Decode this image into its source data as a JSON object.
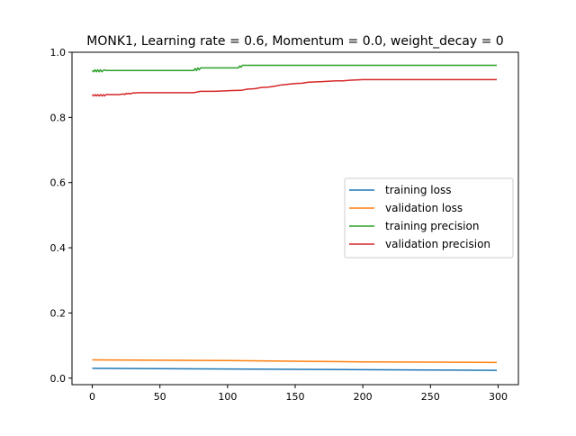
{
  "chart_data": {
    "type": "line",
    "title": "MONK1, Learning rate = 0.6, Momentum = 0.0, weight_decay = 0",
    "xlabel": "",
    "ylabel": "",
    "xlim": [
      -15,
      315
    ],
    "ylim": [
      -0.02,
      1.0
    ],
    "xticks": [
      0,
      50,
      100,
      150,
      200,
      250,
      300
    ],
    "yticks": [
      0.0,
      0.2,
      0.4,
      0.6,
      0.8,
      1.0
    ],
    "ytick_labels": [
      "0.0",
      "0.2",
      "0.4",
      "0.6",
      "0.8",
      "1.0"
    ],
    "grid": false,
    "legend_position": "center-right",
    "series": [
      {
        "name": "training loss",
        "color": "#1f77b4",
        "x": [
          0,
          50,
          100,
          150,
          200,
          250,
          299
        ],
        "y": [
          0.03,
          0.029,
          0.028,
          0.027,
          0.026,
          0.025,
          0.024
        ]
      },
      {
        "name": "validation loss",
        "color": "#ff7f0e",
        "x": [
          0,
          50,
          100,
          150,
          200,
          250,
          299
        ],
        "y": [
          0.056,
          0.055,
          0.054,
          0.052,
          0.05,
          0.049,
          0.048
        ]
      },
      {
        "name": "training precision",
        "color": "#2ca02c",
        "x": [
          0,
          1,
          2,
          3,
          4,
          5,
          6,
          7,
          8,
          9,
          10,
          20,
          40,
          60,
          75,
          76,
          77,
          78,
          79,
          80,
          95,
          108,
          109,
          110,
          111,
          112,
          150,
          200,
          250,
          299
        ],
        "y": [
          0.944,
          0.94,
          0.946,
          0.94,
          0.946,
          0.94,
          0.946,
          0.94,
          0.944,
          0.946,
          0.944,
          0.944,
          0.944,
          0.944,
          0.944,
          0.95,
          0.944,
          0.952,
          0.946,
          0.952,
          0.952,
          0.952,
          0.958,
          0.954,
          0.96,
          0.96,
          0.96,
          0.96,
          0.96,
          0.96
        ]
      },
      {
        "name": "validation precision",
        "color": "#d62728",
        "x": [
          0,
          1,
          2,
          3,
          4,
          5,
          6,
          7,
          8,
          9,
          10,
          15,
          20,
          23,
          24,
          25,
          26,
          27,
          28,
          30,
          35,
          50,
          75,
          80,
          90,
          100,
          110,
          115,
          120,
          125,
          130,
          135,
          140,
          145,
          150,
          155,
          160,
          170,
          180,
          185,
          190,
          195,
          200,
          250,
          299
        ],
        "y": [
          0.87,
          0.866,
          0.87,
          0.866,
          0.87,
          0.866,
          0.87,
          0.866,
          0.87,
          0.866,
          0.87,
          0.87,
          0.87,
          0.872,
          0.87,
          0.874,
          0.872,
          0.874,
          0.872,
          0.875,
          0.876,
          0.876,
          0.876,
          0.88,
          0.88,
          0.882,
          0.883,
          0.887,
          0.888,
          0.892,
          0.893,
          0.896,
          0.9,
          0.902,
          0.904,
          0.905,
          0.908,
          0.91,
          0.912,
          0.912,
          0.914,
          0.915,
          0.916,
          0.916,
          0.916
        ]
      }
    ]
  }
}
